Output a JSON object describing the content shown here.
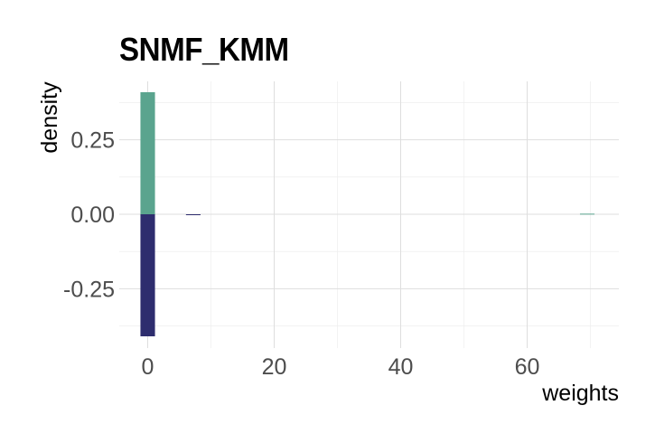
{
  "chart_data": {
    "type": "bar",
    "title": "SNMF_KMM",
    "xlabel": "weights",
    "ylabel": "density",
    "xlim": [
      -4.5,
      74.5
    ],
    "ylim": [
      -0.41,
      0.41
    ],
    "x_ticks": [
      0,
      20,
      40,
      60
    ],
    "x_tick_labels": [
      "0",
      "20",
      "40",
      "60"
    ],
    "y_ticks": [
      -0.25,
      0,
      0.25
    ],
    "y_tick_labels": [
      "-0.25",
      "0.00",
      "0.25"
    ],
    "grid": true,
    "legend": "none",
    "bin_width": 2.3,
    "series": [
      {
        "color": "#5aa48e",
        "direction": "up",
        "bins": [
          {
            "x": 0,
            "value": 0.41
          },
          {
            "x": 69.5,
            "value": 0.002
          }
        ]
      },
      {
        "color": "#2e2d6e",
        "direction": "down",
        "bins": [
          {
            "x": 0,
            "value": 0.41
          },
          {
            "x": 7.2,
            "value": 0.003
          }
        ]
      }
    ]
  }
}
